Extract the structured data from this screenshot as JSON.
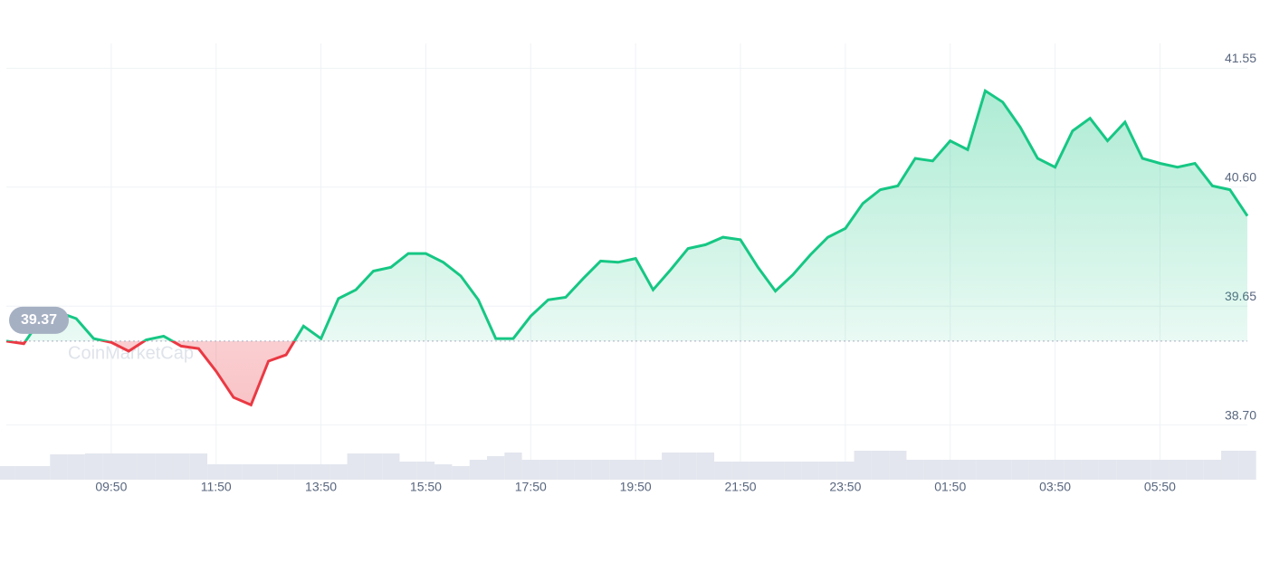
{
  "chart_data": {
    "type": "line",
    "categories": [
      null,
      null,
      null,
      null,
      null,
      null,
      "09:50",
      null,
      null,
      null,
      null,
      null,
      "11:50",
      null,
      null,
      null,
      null,
      null,
      "13:50",
      null,
      null,
      null,
      null,
      null,
      "15:50",
      null,
      null,
      null,
      null,
      null,
      "17:50",
      null,
      null,
      null,
      null,
      null,
      "19:50",
      null,
      null,
      null,
      null,
      null,
      "21:50",
      null,
      null,
      null,
      null,
      null,
      "23:50",
      null,
      null,
      null,
      null,
      null,
      "01:50",
      null,
      null,
      null,
      null,
      null,
      "03:50",
      null,
      null,
      null,
      null,
      null,
      "05:50",
      null,
      null,
      null,
      null,
      null
    ],
    "values": [
      39.37,
      39.35,
      39.55,
      39.6,
      39.55,
      39.39,
      39.36,
      39.29,
      39.38,
      39.41,
      39.33,
      39.31,
      39.13,
      38.92,
      38.86,
      39.21,
      39.26,
      39.49,
      39.39,
      39.71,
      39.78,
      39.93,
      39.96,
      40.07,
      40.07,
      40.0,
      39.89,
      39.7,
      39.39,
      39.39,
      39.57,
      39.7,
      39.72,
      39.87,
      40.01,
      40.0,
      40.03,
      39.78,
      39.94,
      40.11,
      40.14,
      40.2,
      40.18,
      39.96,
      39.77,
      39.9,
      40.06,
      40.2,
      40.27,
      40.47,
      40.58,
      40.61,
      40.83,
      40.81,
      40.97,
      40.9,
      41.37,
      41.28,
      41.08,
      40.83,
      40.76,
      41.05,
      41.15,
      40.97,
      41.12,
      40.83,
      40.79,
      40.76,
      40.79,
      40.61,
      40.58,
      40.37
    ],
    "volume": [
      15,
      15,
      15,
      28,
      28,
      29,
      29,
      29,
      29,
      29,
      29,
      29,
      17,
      17,
      17,
      17,
      17,
      17,
      17,
      17,
      29,
      29,
      29,
      20,
      20,
      17,
      15,
      22,
      26,
      30,
      22,
      22,
      22,
      22,
      22,
      22,
      22,
      22,
      30,
      30,
      30,
      20,
      20,
      20,
      20,
      20,
      20,
      20,
      20,
      32,
      32,
      32,
      22,
      22,
      22,
      22,
      22,
      22,
      22,
      22,
      22,
      22,
      22,
      22,
      22,
      22,
      22,
      22,
      22,
      22,
      32,
      32
    ],
    "reference_value": 39.37,
    "watermark": "CoinMarketCap",
    "ylim": [
      38.48,
      41.77
    ],
    "yticks": [
      {
        "value": 38.7,
        "label": "38.70"
      },
      39.65,
      {
        "value": 40.6,
        "label": "40.60"
      },
      41.55
    ],
    "up_color": "#16c784",
    "down_color": "#ea3943",
    "grid": true
  }
}
